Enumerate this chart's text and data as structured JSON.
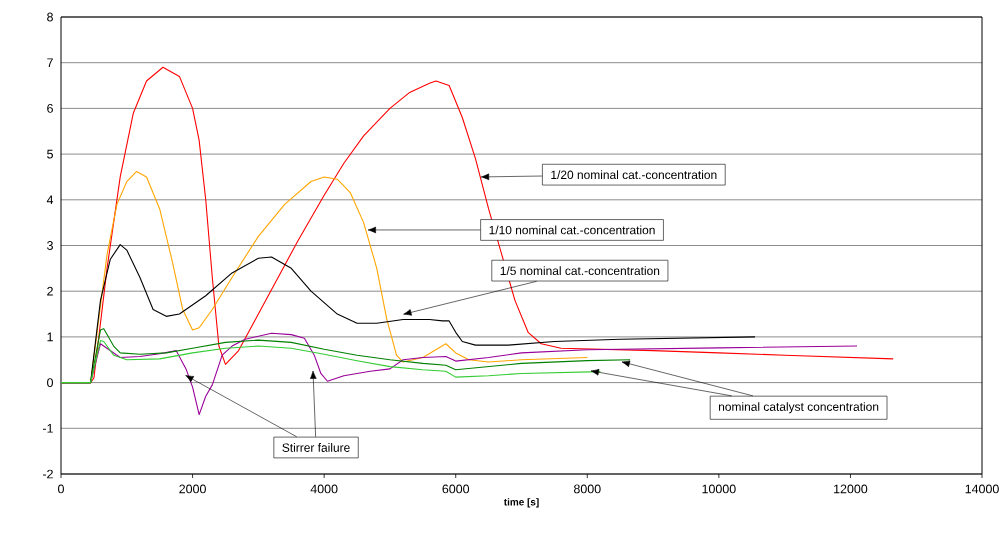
{
  "chart_data": {
    "type": "line",
    "xlabel": "time [s]",
    "xlim": [
      0,
      14000
    ],
    "ylim": [
      -2,
      8
    ],
    "xticks": [
      0,
      2000,
      4000,
      6000,
      8000,
      10000,
      12000,
      14000
    ],
    "yticks": [
      -2,
      -1,
      0,
      1,
      2,
      3,
      4,
      5,
      6,
      7,
      8
    ],
    "grid": "y",
    "marker": "none",
    "line_style": "solid",
    "series": [
      {
        "color": "#ff0000",
        "x": [
          0,
          450,
          500,
          700,
          900,
          1100,
          1300,
          1550,
          1800,
          2000,
          2100,
          2200,
          2300,
          2400,
          2500,
          2700,
          3000,
          3300,
          3600,
          4000,
          4300,
          4600,
          5000,
          5300,
          5600,
          5700,
          5900,
          6100,
          6300,
          6500,
          6700,
          6900,
          7100,
          7300,
          7600,
          9000,
          10000,
          11000,
          12650
        ],
        "values": [
          0,
          0,
          0.1,
          2.5,
          4.5,
          5.9,
          6.6,
          6.9,
          6.7,
          6.0,
          5.3,
          4.0,
          2.3,
          0.8,
          0.4,
          0.7,
          1.5,
          2.3,
          3.1,
          4.1,
          4.8,
          5.4,
          6.0,
          6.35,
          6.55,
          6.6,
          6.5,
          5.8,
          4.9,
          3.8,
          2.8,
          1.8,
          1.1,
          0.85,
          0.75,
          0.7,
          0.65,
          0.6,
          0.52
        ]
      },
      {
        "color": "#ffa500",
        "x": [
          0,
          450,
          700,
          850,
          1000,
          1150,
          1300,
          1500,
          1700,
          1850,
          2000,
          2100,
          2300,
          2600,
          3000,
          3400,
          3800,
          4000,
          4200,
          4400,
          4600,
          4800,
          4950,
          5100,
          5200,
          5500,
          5850,
          6000,
          6200,
          6500,
          7000,
          8000
        ],
        "values": [
          0,
          0,
          2.8,
          3.9,
          4.4,
          4.62,
          4.5,
          3.8,
          2.6,
          1.6,
          1.15,
          1.2,
          1.6,
          2.3,
          3.2,
          3.9,
          4.4,
          4.5,
          4.45,
          4.15,
          3.5,
          2.5,
          1.4,
          0.6,
          0.45,
          0.55,
          0.85,
          0.65,
          0.5,
          0.45,
          0.5,
          0.55
        ]
      },
      {
        "color": "#000000",
        "x": [
          0,
          450,
          600,
          750,
          900,
          1000,
          1200,
          1400,
          1600,
          1800,
          2200,
          2600,
          3000,
          3200,
          3500,
          3800,
          4200,
          4500,
          4800,
          5200,
          5600,
          5800,
          5900,
          6000,
          6100,
          6300,
          6800,
          7500,
          8500,
          10550
        ],
        "values": [
          0,
          0,
          1.8,
          2.7,
          3.02,
          2.9,
          2.3,
          1.6,
          1.45,
          1.5,
          1.9,
          2.4,
          2.72,
          2.75,
          2.5,
          2.0,
          1.5,
          1.3,
          1.3,
          1.38,
          1.38,
          1.35,
          1.35,
          1.1,
          0.9,
          0.82,
          0.82,
          0.9,
          0.95,
          1.0
        ]
      },
      {
        "color": "#990099",
        "x": [
          0,
          450,
          600,
          700,
          900,
          1200,
          1500,
          1750,
          1900,
          2000,
          2100,
          2200,
          2300,
          2450,
          2600,
          2800,
          3200,
          3500,
          3700,
          3850,
          3950,
          4050,
          4300,
          4700,
          5000,
          5200,
          5500,
          5850,
          6000,
          6500,
          7000,
          8000,
          10000,
          12100
        ],
        "values": [
          0,
          0,
          0.85,
          0.75,
          0.55,
          0.57,
          0.63,
          0.7,
          0.3,
          -0.1,
          -0.7,
          -0.3,
          -0.05,
          0.6,
          0.8,
          0.95,
          1.08,
          1.05,
          0.97,
          0.6,
          0.2,
          0.03,
          0.15,
          0.25,
          0.3,
          0.5,
          0.55,
          0.57,
          0.47,
          0.55,
          0.65,
          0.72,
          0.76,
          0.8
        ]
      },
      {
        "color": "#008000",
        "x": [
          0,
          450,
          600,
          650,
          800,
          900,
          1200,
          1600,
          2000,
          2500,
          3000,
          3500,
          4000,
          4500,
          5000,
          5500,
          5850,
          6000,
          6500,
          7000,
          8000,
          8650
        ],
        "values": [
          0,
          0,
          1.15,
          1.18,
          0.8,
          0.65,
          0.62,
          0.65,
          0.75,
          0.88,
          0.93,
          0.88,
          0.73,
          0.6,
          0.5,
          0.42,
          0.38,
          0.28,
          0.35,
          0.42,
          0.48,
          0.5
        ]
      },
      {
        "color": "#33cc33",
        "x": [
          0,
          450,
          600,
          650,
          800,
          1000,
          1500,
          2000,
          2500,
          3000,
          3500,
          4000,
          4500,
          5000,
          5500,
          5850,
          6000,
          6500,
          7000,
          8200
        ],
        "values": [
          0,
          0,
          0.92,
          0.9,
          0.6,
          0.5,
          0.52,
          0.65,
          0.75,
          0.8,
          0.75,
          0.62,
          0.48,
          0.35,
          0.28,
          0.25,
          0.12,
          0.15,
          0.2,
          0.24
        ]
      }
    ],
    "annotations": [
      "1/20 nominal cat.-concentration",
      {
        "text": "1/10 nominal cat.-concentration",
        "x": 4650,
        "y": 3.34
      },
      {
        "text": "1/5 nominal cat.-concentration",
        "x": 5190,
        "y": 1.49
      },
      {
        "text": "nominal catalyst concentration",
        "x": 8510,
        "y": 0.46
      },
      {
        "text": "Stirrer failure",
        "x": 1880,
        "y": 0.17
      }
    ]
  }
}
